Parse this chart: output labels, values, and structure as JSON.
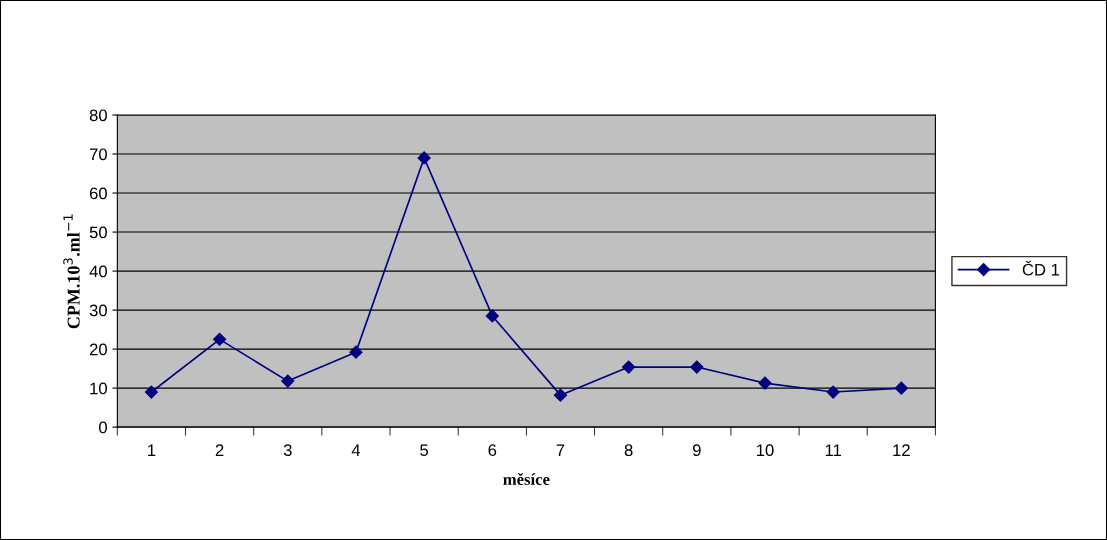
{
  "chart_data": {
    "type": "line",
    "xlabel": "měsíce",
    "ylabel": "CPM.10$^{3}$.ml$^{−1}$",
    "categories": [
      "1",
      "2",
      "3",
      "4",
      "5",
      "6",
      "7",
      "8",
      "9",
      "10",
      "11",
      "12"
    ],
    "series": [
      {
        "name": "ČD 1",
        "color": "#000080",
        "values": [
          9,
          22.5,
          11.8,
          19.2,
          69,
          28.5,
          8.2,
          15.4,
          15.4,
          11.3,
          9,
          10
        ]
      }
    ],
    "ylim": [
      0,
      80
    ],
    "yticks": [
      0,
      10,
      20,
      30,
      40,
      50,
      60,
      70,
      80
    ],
    "grid": "y",
    "legend": "right",
    "marker": "diamond",
    "line_style": "solid"
  }
}
